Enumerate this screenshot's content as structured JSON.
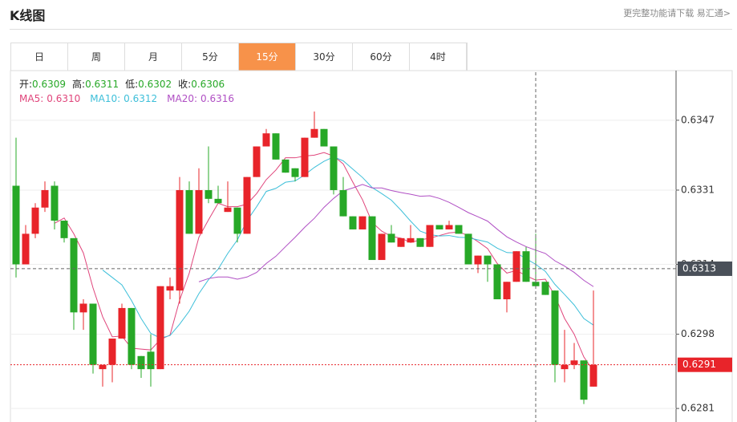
{
  "header": {
    "title": "K线图",
    "link": "更完整功能请下载 易汇通>"
  },
  "tabs": [
    "日",
    "周",
    "月",
    "5分",
    "15分",
    "30分",
    "60分",
    "4时"
  ],
  "active_tab": 4,
  "info": {
    "ohlc": [
      {
        "label": "开:",
        "value": "0.6309"
      },
      {
        "label": "高:",
        "value": "0.6311"
      },
      {
        "label": "低:",
        "value": "0.6302"
      },
      {
        "label": "收:",
        "value": "0.6306"
      }
    ],
    "ma": [
      {
        "label": "MA5:",
        "value": "0.6310",
        "color": "#e0457b",
        "period": 5
      },
      {
        "label": "MA10:",
        "value": "0.6312",
        "color": "#3dbfd9",
        "period": 10
      },
      {
        "label": "MA20:",
        "value": "0.6316",
        "color": "#b04fc4",
        "period": 20
      }
    ]
  },
  "chart_data": {
    "type": "candlestick",
    "up_color": "#e8242a",
    "down_color": "#27a827",
    "open": [
      0.6332,
      0.6314,
      0.6321,
      0.6327,
      0.6332,
      0.6324,
      0.632,
      0.6303,
      0.6305,
      0.629,
      0.6291,
      0.6297,
      0.6304,
      0.6293,
      0.6294,
      0.629,
      0.6308,
      0.6308,
      0.6331,
      0.6321,
      0.6331,
      0.6329,
      0.6326,
      0.6327,
      0.6321,
      0.6334,
      0.6341,
      0.6344,
      0.6338,
      0.6336,
      0.6334,
      0.6343,
      0.6345,
      0.6341,
      0.6331,
      0.6325,
      0.6322,
      0.6325,
      0.6315,
      0.6321,
      0.6318,
      0.6319,
      0.632,
      0.6318,
      0.6323,
      0.6322,
      0.6323,
      0.6321,
      0.6314,
      0.6316,
      0.6314,
      0.6306,
      0.631,
      0.6317,
      0.631,
      0.631,
      0.6308,
      0.629,
      0.6291,
      0.6292,
      0.6286
    ],
    "high": [
      0.6343,
      0.6323,
      0.6328,
      0.6333,
      0.6333,
      0.6324,
      0.632,
      0.6306,
      0.6305,
      0.6291,
      0.6297,
      0.6305,
      0.6304,
      0.6293,
      0.6298,
      0.6309,
      0.6311,
      0.6334,
      0.6333,
      0.6336,
      0.6341,
      0.6332,
      0.6333,
      0.6327,
      0.6334,
      0.6341,
      0.6345,
      0.6344,
      0.6338,
      0.6336,
      0.6343,
      0.6349,
      0.6345,
      0.6341,
      0.6334,
      0.6325,
      0.6325,
      0.6325,
      0.6321,
      0.6323,
      0.632,
      0.6323,
      0.632,
      0.6323,
      0.6323,
      0.6324,
      0.6323,
      0.6321,
      0.6316,
      0.6316,
      0.6314,
      0.631,
      0.6317,
      0.6318,
      0.6321,
      0.631,
      0.6308,
      0.6299,
      0.6296,
      0.6292,
      0.6308
    ],
    "low": [
      0.6311,
      0.6314,
      0.632,
      0.6326,
      0.6322,
      0.6319,
      0.6299,
      0.6299,
      0.6289,
      0.6286,
      0.6287,
      0.6297,
      0.629,
      0.6288,
      0.6286,
      0.629,
      0.6306,
      0.6305,
      0.6321,
      0.6321,
      0.6328,
      0.6328,
      0.6326,
      0.6319,
      0.6321,
      0.6334,
      0.6341,
      0.6338,
      0.6335,
      0.6333,
      0.6334,
      0.6343,
      0.6341,
      0.633,
      0.6325,
      0.6322,
      0.6322,
      0.6315,
      0.6315,
      0.6319,
      0.6318,
      0.6319,
      0.6318,
      0.6318,
      0.6322,
      0.6322,
      0.6321,
      0.6314,
      0.6312,
      0.631,
      0.6306,
      0.6303,
      0.631,
      0.631,
      0.6309,
      0.6307,
      0.6287,
      0.6287,
      0.629,
      0.6282,
      0.6286
    ],
    "close": [
      0.6314,
      0.6321,
      0.6327,
      0.6331,
      0.6324,
      0.632,
      0.6303,
      0.6305,
      0.6291,
      0.6291,
      0.6297,
      0.6304,
      0.6291,
      0.629,
      0.629,
      0.6309,
      0.6309,
      0.6331,
      0.6321,
      0.6331,
      0.6329,
      0.6328,
      0.6327,
      0.6321,
      0.6334,
      0.6341,
      0.6344,
      0.6338,
      0.6335,
      0.6334,
      0.6343,
      0.6345,
      0.6341,
      0.6331,
      0.6325,
      0.6322,
      0.6325,
      0.6315,
      0.6321,
      0.6319,
      0.632,
      0.632,
      0.6318,
      0.6323,
      0.6322,
      0.6323,
      0.6321,
      0.6314,
      0.6316,
      0.6314,
      0.6306,
      0.631,
      0.6317,
      0.631,
      0.6309,
      0.6307,
      0.6291,
      0.6291,
      0.6292,
      0.6283,
      0.6291
    ],
    "ylim": [
      0.6279,
      0.6358
    ],
    "yticks": [
      0.6347,
      0.6331,
      0.6314,
      0.6298,
      0.6281
    ],
    "grid": true,
    "crosshair": {
      "index": 54,
      "price": 0.6313
    },
    "last_price": 0.6291
  }
}
